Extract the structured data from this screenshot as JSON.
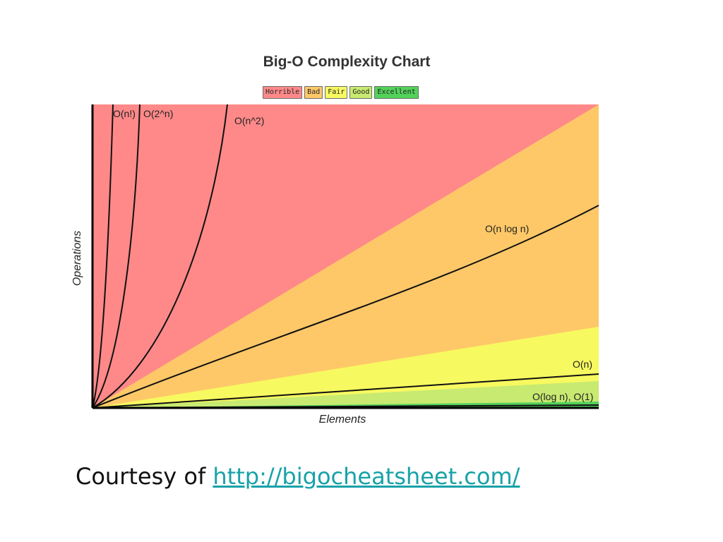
{
  "chart_data": {
    "type": "line",
    "title": "Big-O Complexity Chart",
    "xlabel": "Elements",
    "ylabel": "Operations",
    "grid": false,
    "legend": {
      "placement": "top-center",
      "items": [
        {
          "label": "Horrible",
          "color": "#ff8989"
        },
        {
          "label": "Bad",
          "color": "#fec868"
        },
        {
          "label": "Fair",
          "color": "#f7f960"
        },
        {
          "label": "Good",
          "color": "#c8ea71"
        },
        {
          "label": "Excellent",
          "color": "#53d25a"
        }
      ]
    },
    "series": [
      {
        "name": "O(n!)",
        "formula": "n!"
      },
      {
        "name": "O(2^n)",
        "formula": "2^n"
      },
      {
        "name": "O(n^2)",
        "formula": "n^2"
      },
      {
        "name": "O(n log n)",
        "formula": "n log n"
      },
      {
        "name": "O(n)",
        "formula": "n"
      },
      {
        "name": "O(log n), O(1)",
        "formula": "log n, 1"
      }
    ]
  },
  "footer": {
    "prefix": "Courtesy of ",
    "link_text": "http://bigocheatsheet.com/"
  }
}
